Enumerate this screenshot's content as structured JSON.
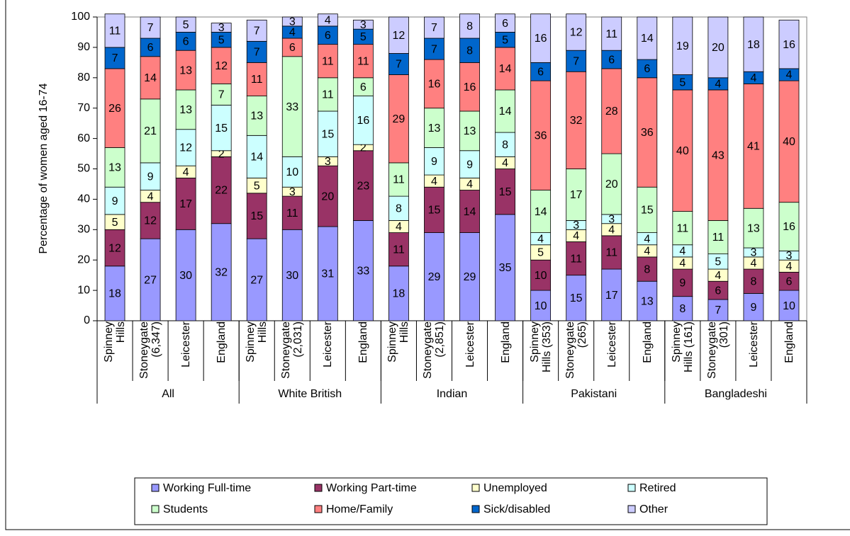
{
  "chart_data": {
    "type": "stacked_bar",
    "y_label": "Percentage of women aged 16-74",
    "categories": [
      "Spinney Hills",
      "Stoneygate (6,347)",
      "Leicester",
      "England",
      "Spinney Hills",
      "Stoneygate (2,031)",
      "Leicester",
      "England",
      "Spinney Hills",
      "Stoneygate (2,851)",
      "Leicester",
      "England",
      "Spinney Hills (353)",
      "Stoneygate (265)",
      "Leicester",
      "England",
      "Spinney Hills (161)",
      "Stoneygate (301)",
      "Leicester",
      "England"
    ],
    "groups": [
      "All",
      "White British",
      "Indian",
      "Pakistani",
      "Bangladeshi"
    ],
    "series": [
      {
        "name": "Working Full-time",
        "color": "#9999ff",
        "values": [
          18,
          27,
          30,
          32,
          27,
          30,
          31,
          33,
          18,
          29,
          29,
          35,
          10,
          15,
          17,
          13,
          8,
          7,
          9,
          10
        ]
      },
      {
        "name": "Working Part-time",
        "color": "#993366",
        "values": [
          12,
          12,
          17,
          22,
          15,
          11,
          20,
          23,
          11,
          15,
          14,
          15,
          10,
          11,
          11,
          8,
          9,
          6,
          8,
          6
        ]
      },
      {
        "name": "Unemployed",
        "color": "#ffffcc",
        "values": [
          5,
          4,
          4,
          2,
          5,
          3,
          3,
          2,
          4,
          4,
          4,
          4,
          5,
          4,
          4,
          4,
          4,
          4,
          4,
          4
        ]
      },
      {
        "name": "Retired",
        "color": "#ccffff",
        "values": [
          9,
          9,
          12,
          15,
          14,
          10,
          15,
          16,
          8,
          9,
          9,
          8,
          4,
          3,
          3,
          4,
          4,
          5,
          3,
          3
        ]
      },
      {
        "name": "Students",
        "color": "#ccffcc",
        "values": [
          13,
          21,
          13,
          7,
          13,
          33,
          11,
          6,
          11,
          13,
          13,
          14,
          14,
          17,
          20,
          15,
          11,
          11,
          13,
          16
        ]
      },
      {
        "name": "Home/Family",
        "color": "#ff8080",
        "values": [
          26,
          14,
          13,
          12,
          11,
          6,
          11,
          11,
          29,
          16,
          16,
          14,
          36,
          32,
          28,
          36,
          40,
          43,
          41,
          40
        ]
      },
      {
        "name": "Sick/disabled",
        "color": "#0066cc",
        "values": [
          7,
          6,
          6,
          5,
          7,
          4,
          6,
          5,
          7,
          7,
          8,
          5,
          6,
          7,
          6,
          6,
          5,
          4,
          4,
          4
        ]
      },
      {
        "name": "Other",
        "color": "#ccccff",
        "values": [
          11,
          7,
          5,
          3,
          7,
          3,
          4,
          3,
          12,
          7,
          8,
          6,
          16,
          12,
          11,
          14,
          19,
          20,
          18,
          16
        ]
      }
    ],
    "ylim": [
      0,
      100
    ],
    "yticks": [
      0,
      10,
      20,
      30,
      40,
      50,
      60,
      70,
      80,
      90,
      100
    ]
  }
}
